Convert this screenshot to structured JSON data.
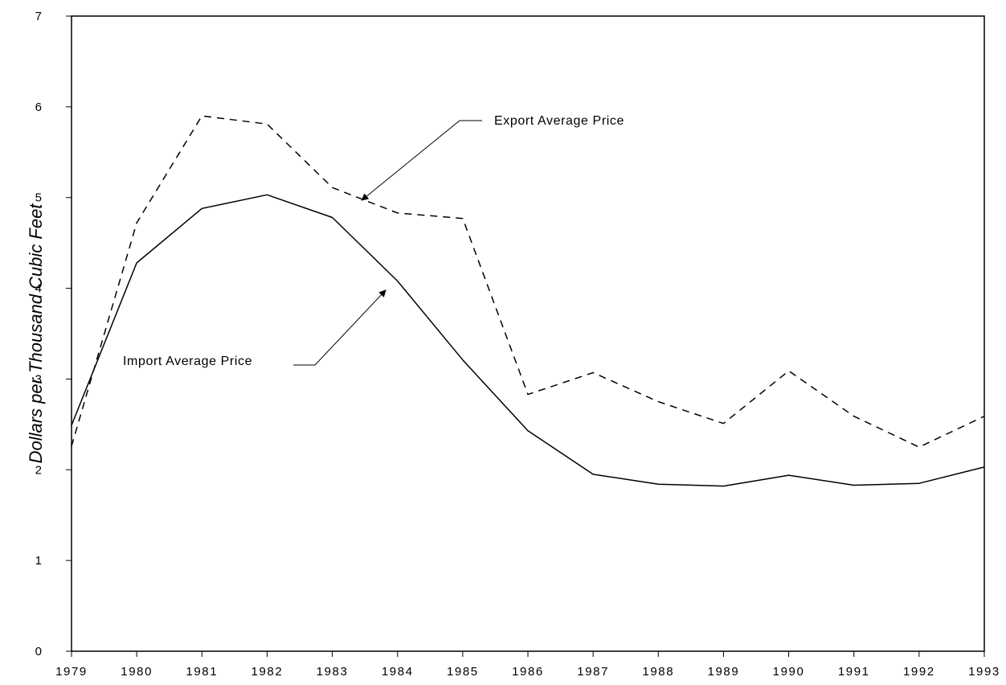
{
  "chart_data": {
    "type": "line",
    "title": "",
    "xlabel": "",
    "ylabel": "Dollars per Thousand Cubic Feet",
    "x": [
      1979,
      1980,
      1981,
      1982,
      1983,
      1984,
      1985,
      1986,
      1987,
      1988,
      1989,
      1990,
      1991,
      1992,
      1993
    ],
    "xticks": [
      "1979",
      "1980",
      "1981",
      "1982",
      "1983",
      "1984",
      "1985",
      "1986",
      "1987",
      "1988",
      "1989",
      "1990",
      "1991",
      "1992",
      "1993"
    ],
    "ylim": [
      0,
      7
    ],
    "yticks": [
      "0",
      "1",
      "2",
      "3",
      "4",
      "5",
      "6",
      "7"
    ],
    "grid": false,
    "series": [
      {
        "name": "Export Average Price",
        "line_style": "dashed",
        "values": [
          2.26,
          4.72,
          5.9,
          5.81,
          5.11,
          4.83,
          4.77,
          2.83,
          3.07,
          2.75,
          2.51,
          3.09,
          2.59,
          2.25,
          2.59
        ]
      },
      {
        "name": "Import Average Price",
        "line_style": "solid",
        "values": [
          2.49,
          4.28,
          4.88,
          5.03,
          4.78,
          4.08,
          3.21,
          2.43,
          1.95,
          1.84,
          1.82,
          1.94,
          1.83,
          1.85,
          2.03
        ]
      }
    ],
    "annotations": [
      {
        "text": "Export Average Price",
        "series": "Export Average Price",
        "points_to": {
          "x": 1983.45,
          "y": 4.97
        }
      },
      {
        "text": "Import Average Price",
        "series": "Import Average Price",
        "points_to": {
          "x": 1983.82,
          "y": 3.98
        }
      }
    ],
    "colors": {
      "line": "#000000",
      "axis": "#000000",
      "background": "#ffffff"
    }
  }
}
